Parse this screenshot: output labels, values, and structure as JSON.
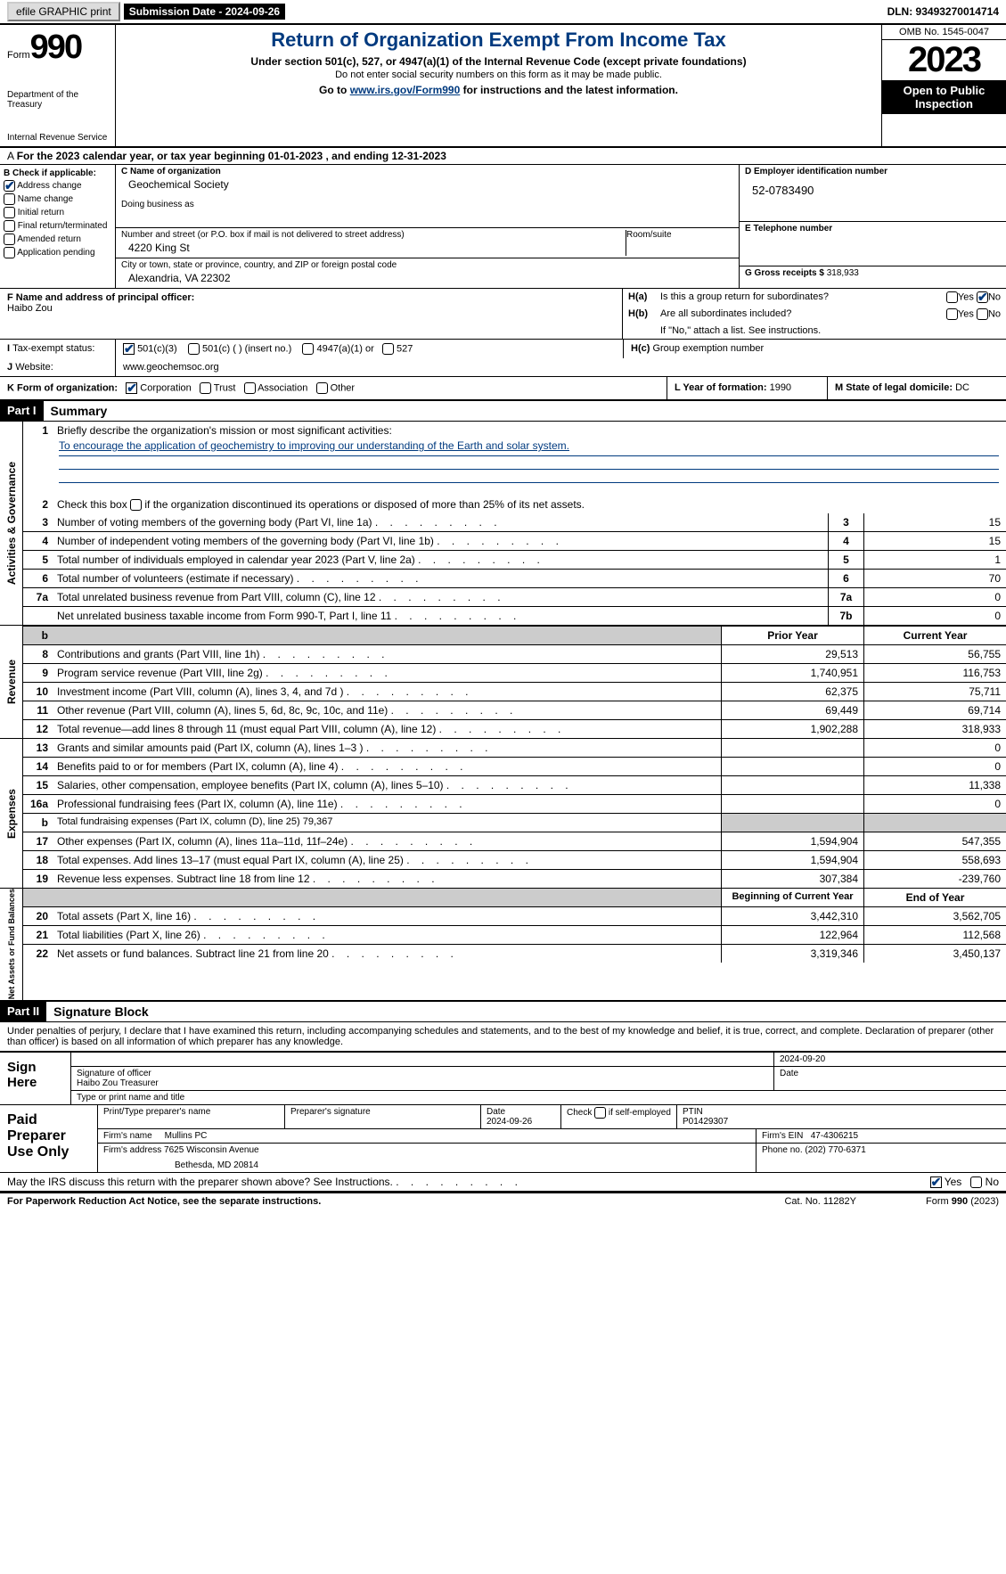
{
  "topbar": {
    "efile": "efile GRAPHIC print",
    "submission": "Submission Date - 2024-09-26",
    "dln": "DLN: 93493270014714"
  },
  "hdr": {
    "form": "Form",
    "n": "990",
    "dept": "Department of the Treasury",
    "irs": "Internal Revenue Service",
    "title": "Return of Organization Exempt From Income Tax",
    "sub1": "Under section 501(c), 527, or 4947(a)(1) of the Internal Revenue Code (except private foundations)",
    "sub2": "Do not enter social security numbers on this form as it may be made public.",
    "sub3": "Go to ",
    "link": "www.irs.gov/Form990",
    "sub3b": " for instructions and the latest information.",
    "omb": "OMB No. 1545-0047",
    "year": "2023",
    "open": "Open to Public Inspection"
  },
  "rowA": "For the 2023 calendar year, or tax year beginning 01-01-2023   , and ending 12-31-2023",
  "B": {
    "lbl": "B Check if applicable:",
    "items": [
      "Address change",
      "Name change",
      "Initial return",
      "Final return/terminated",
      "Amended return",
      "Application pending"
    ],
    "checked": [
      true,
      false,
      false,
      false,
      false,
      false
    ]
  },
  "C": {
    "lbl": "C Name of organization",
    "name": "Geochemical Society",
    "dba": "Doing business as",
    "addr_lbl": "Number and street (or P.O. box if mail is not delivered to street address)",
    "addr": "4220 King St",
    "room": "Room/suite",
    "city_lbl": "City or town, state or province, country, and ZIP or foreign postal code",
    "city": "Alexandria, VA  22302"
  },
  "D": {
    "lbl": "D Employer identification number",
    "val": "52-0783490"
  },
  "E": {
    "lbl": "E Telephone number",
    "val": ""
  },
  "G": {
    "lbl": "G Gross receipts $",
    "val": "318,933"
  },
  "F": {
    "lbl": "F  Name and address of principal officer:",
    "val": "Haibo Zou"
  },
  "H": {
    "a": "Is this a group return for subordinates?",
    "b": "Are all subordinates included?",
    "note": "If \"No,\" attach a list. See instructions.",
    "c": "Group exemption number",
    "a_no": true
  },
  "I": {
    "lbl": "Tax-exempt status:",
    "opts": [
      "501(c)(3)",
      "501(c) (  ) (insert no.)",
      "4947(a)(1) or",
      "527"
    ],
    "checked": 0
  },
  "J": {
    "lbl": "Website:",
    "val": "www.geochemsoc.org"
  },
  "K": {
    "lbl": "K Form of organization:",
    "opts": [
      "Corporation",
      "Trust",
      "Association",
      "Other"
    ],
    "checked": 0
  },
  "L": {
    "lbl": "L Year of formation:",
    "val": "1990"
  },
  "M": {
    "lbl": "M State of legal domicile:",
    "val": "DC"
  },
  "part1": {
    "hdr": "Part I",
    "title": "Summary"
  },
  "sec1": {
    "side": "Activities & Governance",
    "l1": "Briefly describe the organization's mission or most significant activities:",
    "l1v": "To encourage the application of geochemistry to improving our understanding of the Earth and solar system.",
    "l2": "Check this box          if the organization discontinued its operations or disposed of more than 25% of its net assets.",
    "rows": [
      {
        "n": "3",
        "t": "Number of voting members of the governing body (Part VI, line 1a)",
        "v": "15"
      },
      {
        "n": "4",
        "t": "Number of independent voting members of the governing body (Part VI, line 1b)",
        "v": "15"
      },
      {
        "n": "5",
        "t": "Total number of individuals employed in calendar year 2023 (Part V, line 2a)",
        "v": "1"
      },
      {
        "n": "6",
        "t": "Total number of volunteers (estimate if necessary)",
        "v": "70"
      },
      {
        "n": "7a",
        "t": "Total unrelated business revenue from Part VIII, column (C), line 12",
        "v": "0"
      },
      {
        "n": "",
        "sub": "b",
        "t": "Net unrelated business taxable income from Form 990-T, Part I, line 11",
        "cn": "7b",
        "v": "0"
      }
    ]
  },
  "sec2": {
    "side": "Revenue",
    "h1": "Prior Year",
    "h2": "Current Year",
    "rows": [
      {
        "n": "8",
        "t": "Contributions and grants (Part VIII, line 1h)",
        "p": "29,513",
        "c": "56,755"
      },
      {
        "n": "9",
        "t": "Program service revenue (Part VIII, line 2g)",
        "p": "1,740,951",
        "c": "116,753"
      },
      {
        "n": "10",
        "t": "Investment income (Part VIII, column (A), lines 3, 4, and 7d )",
        "p": "62,375",
        "c": "75,711"
      },
      {
        "n": "11",
        "t": "Other revenue (Part VIII, column (A), lines 5, 6d, 8c, 9c, 10c, and 11e)",
        "p": "69,449",
        "c": "69,714"
      },
      {
        "n": "12",
        "t": "Total revenue—add lines 8 through 11 (must equal Part VIII, column (A), line 12)",
        "p": "1,902,288",
        "c": "318,933"
      }
    ]
  },
  "sec3": {
    "side": "Expenses",
    "rows": [
      {
        "n": "13",
        "t": "Grants and similar amounts paid (Part IX, column (A), lines 1–3 )",
        "p": "",
        "c": "0"
      },
      {
        "n": "14",
        "t": "Benefits paid to or for members (Part IX, column (A), line 4)",
        "p": "",
        "c": "0"
      },
      {
        "n": "15",
        "t": "Salaries, other compensation, employee benefits (Part IX, column (A), lines 5–10)",
        "p": "",
        "c": "11,338"
      },
      {
        "n": "16a",
        "t": "Professional fundraising fees (Part IX, column (A), line 11e)",
        "p": "",
        "c": "0"
      },
      {
        "n": "b",
        "t": "Total fundraising expenses (Part IX, column (D), line 25) 79,367",
        "grey": true
      },
      {
        "n": "17",
        "t": "Other expenses (Part IX, column (A), lines 11a–11d, 11f–24e)",
        "p": "1,594,904",
        "c": "547,355"
      },
      {
        "n": "18",
        "t": "Total expenses. Add lines 13–17 (must equal Part IX, column (A), line 25)",
        "p": "1,594,904",
        "c": "558,693"
      },
      {
        "n": "19",
        "t": "Revenue less expenses. Subtract line 18 from line 12",
        "p": "307,384",
        "c": "-239,760"
      }
    ]
  },
  "sec4": {
    "side": "Net Assets or Fund Balances",
    "h1": "Beginning of Current Year",
    "h2": "End of Year",
    "rows": [
      {
        "n": "20",
        "t": "Total assets (Part X, line 16)",
        "p": "3,442,310",
        "c": "3,562,705"
      },
      {
        "n": "21",
        "t": "Total liabilities (Part X, line 26)",
        "p": "122,964",
        "c": "112,568"
      },
      {
        "n": "22",
        "t": "Net assets or fund balances. Subtract line 21 from line 20",
        "p": "3,319,346",
        "c": "3,450,137"
      }
    ]
  },
  "part2": {
    "hdr": "Part II",
    "title": "Signature Block"
  },
  "decl": "Under penalties of perjury, I declare that I have examined this return, including accompanying schedules and statements, and to the best of my knowledge and belief, it is true, correct, and complete. Declaration of preparer (other than officer) is based on all information of which preparer has any knowledge.",
  "sign": {
    "lbl": "Sign Here",
    "date": "2024-09-20",
    "sig": "Signature of officer",
    "name": "Haibo Zou Treasurer",
    "type": "Type or print name and title",
    "dlbl": "Date"
  },
  "paid": {
    "lbl": "Paid Preparer Use Only",
    "h": [
      "Print/Type preparer's name",
      "Preparer's signature",
      "Date",
      "",
      "PTIN"
    ],
    "date": "2024-09-26",
    "check": "Check          if self-employed",
    "ptin": "P01429307",
    "firm_n_lbl": "Firm's name",
    "firm_n": "Mullins PC",
    "ein_lbl": "Firm's EIN",
    "ein": "47-4306215",
    "firm_a_lbl": "Firm's address",
    "firm_a": "7625 Wisconsin Avenue",
    "firm_a2": "Bethesda, MD  20814",
    "phone_lbl": "Phone no.",
    "phone": "(202) 770-6371"
  },
  "may": "May the IRS discuss this return with the preparer shown above? See Instructions.",
  "foot": {
    "a": "For Paperwork Reduction Act Notice, see the separate instructions.",
    "b": "Cat. No. 11282Y",
    "c": "Form 990 (2023)"
  }
}
